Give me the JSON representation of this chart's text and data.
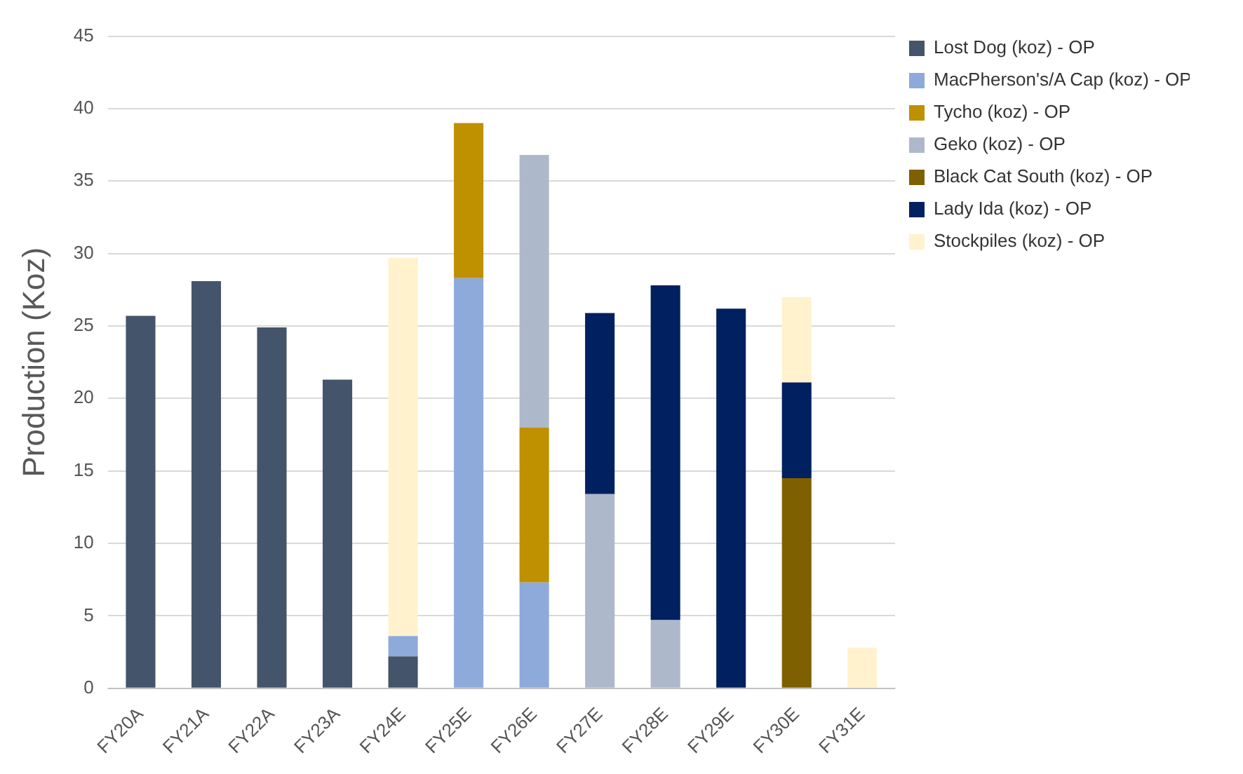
{
  "chart_data": {
    "type": "bar",
    "stacked": true,
    "ylabel": "Production (Koz)",
    "categories": [
      "FY20A",
      "FY21A",
      "FY22A",
      "FY23A",
      "FY24E",
      "FY25E",
      "FY26E",
      "FY27E",
      "FY28E",
      "FY29E",
      "FY30E",
      "FY31E"
    ],
    "series": [
      {
        "name": "Lost Dog (koz) - OP",
        "color": "#44546a",
        "values": [
          25.7,
          28.1,
          24.9,
          21.3,
          2.2,
          null,
          null,
          null,
          null,
          null,
          null,
          null
        ]
      },
      {
        "name": "MacPherson's/A Cap (koz) - OP",
        "color": "#8eaadb",
        "values": [
          null,
          null,
          null,
          null,
          1.4,
          28.3,
          7.3,
          null,
          null,
          null,
          null,
          null
        ]
      },
      {
        "name": "Tycho (koz) - OP",
        "color": "#bf9000",
        "values": [
          null,
          null,
          null,
          null,
          null,
          10.7,
          10.7,
          null,
          null,
          null,
          null,
          null
        ]
      },
      {
        "name": "Geko (koz) - OP",
        "color": "#adb9ca",
        "values": [
          null,
          null,
          null,
          null,
          null,
          null,
          18.8,
          13.4,
          4.7,
          null,
          null,
          null
        ]
      },
      {
        "name": "Black Cat South (koz) - OP",
        "color": "#7f6000",
        "values": [
          null,
          null,
          null,
          null,
          null,
          null,
          null,
          null,
          null,
          null,
          14.5,
          null
        ]
      },
      {
        "name": "Lady Ida (koz) - OP",
        "color": "#002060",
        "values": [
          null,
          null,
          null,
          null,
          null,
          null,
          null,
          12.5,
          23.1,
          26.2,
          6.6,
          null
        ]
      },
      {
        "name": "Stockpiles (koz) - OP",
        "color": "#fff2cc",
        "values": [
          null,
          null,
          null,
          null,
          26.1,
          null,
          null,
          null,
          null,
          null,
          5.9,
          2.8
        ]
      }
    ],
    "ylim": [
      0,
      45
    ],
    "yticks": [
      0,
      5,
      10,
      15,
      20,
      25,
      30,
      35,
      40,
      45
    ],
    "grid": "y",
    "legend": "top right"
  }
}
